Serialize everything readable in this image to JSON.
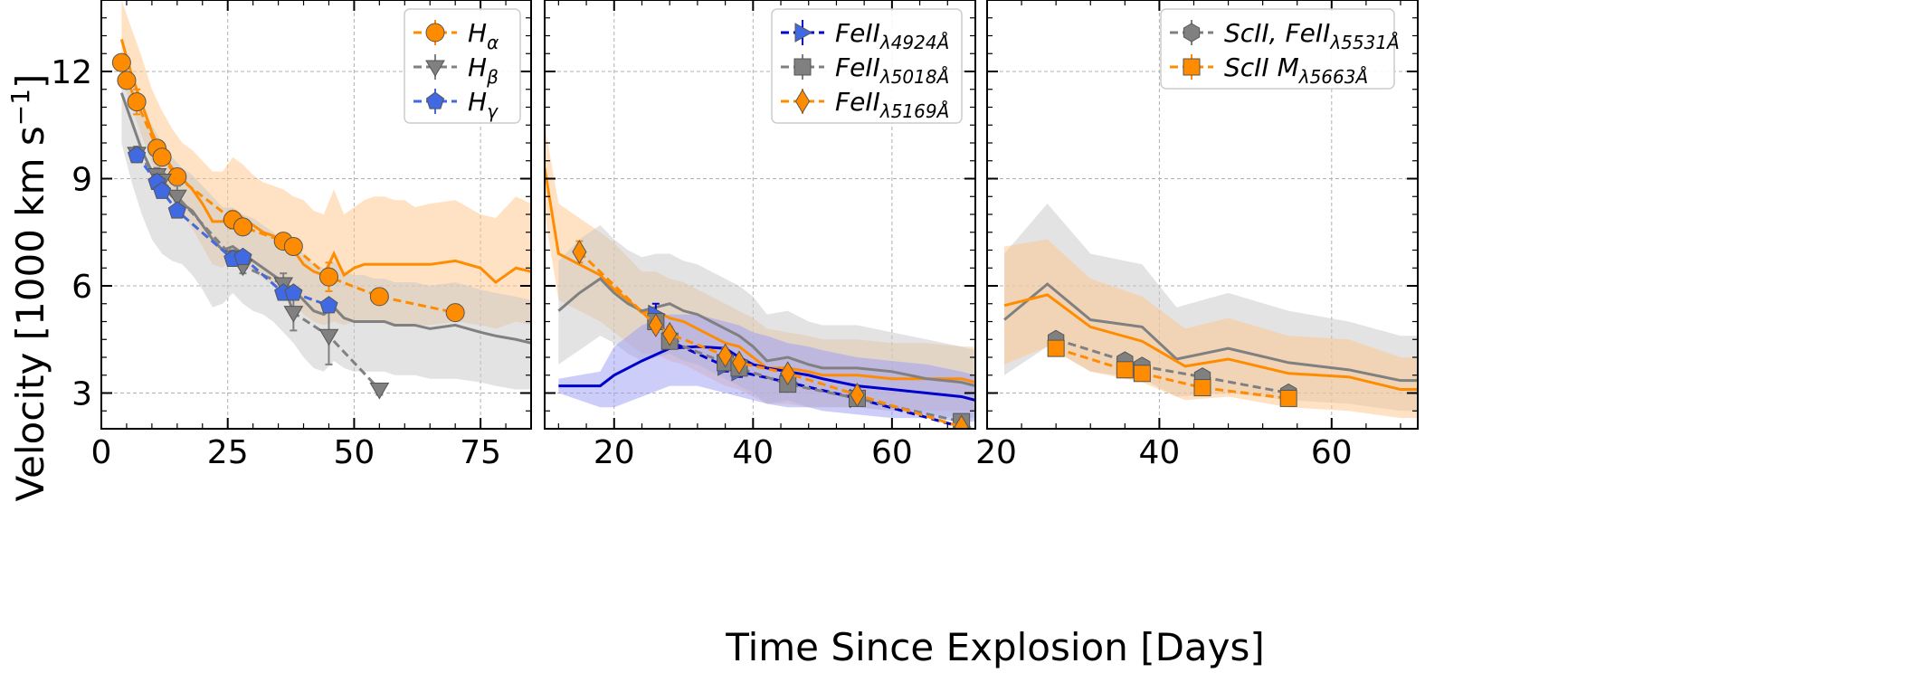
{
  "figure": {
    "ylabel": "Velocity [1000 km s",
    "ylabel_sup": "−1",
    "ylabel_close": "]",
    "xlabel": "Time Since Explosion [Days]",
    "colors": {
      "orange": "#ff8c00",
      "orange_fill": "#ffc58a",
      "gray": "#808080",
      "gray_fill": "#c8c8c8",
      "blue": "#0000cc",
      "blue_marker": "#4169e1",
      "blue_fill": "#9b9bf5",
      "grid": "#b0b0b0"
    }
  },
  "chart_data": [
    {
      "type": "line",
      "title": "",
      "xlim": [
        0,
        85
      ],
      "ylim": [
        2,
        14
      ],
      "xticks": [
        0,
        25,
        50,
        75
      ],
      "yticks": [
        3,
        6,
        9,
        12
      ],
      "grid": true,
      "legend_position": "top-right",
      "series": [
        {
          "name": "H",
          "sub": "α",
          "kind": "points",
          "marker": "circle",
          "color": "#ff8c00",
          "x": [
            4,
            5,
            7,
            11,
            12,
            15,
            26,
            28,
            36,
            38,
            45,
            55,
            70
          ],
          "y": [
            12.25,
            11.75,
            11.15,
            9.85,
            9.6,
            9.05,
            7.85,
            7.65,
            7.25,
            7.1,
            6.25,
            5.7,
            5.25
          ],
          "yerr": [
            0.2,
            0.2,
            0.35,
            0.2,
            0.2,
            0.2,
            0.25,
            0.2,
            0.2,
            0.2,
            0.4,
            0.15,
            0.15
          ]
        },
        {
          "name": "H",
          "sub": "β",
          "kind": "points",
          "marker": "tri_down",
          "color": "#808080",
          "x": [
            7,
            11,
            12,
            15,
            26,
            28,
            36,
            38,
            45,
            55
          ],
          "y": [
            9.7,
            9.1,
            8.95,
            8.5,
            6.8,
            6.55,
            6.05,
            5.25,
            4.6,
            3.1
          ],
          "yerr": [
            0.2,
            0.2,
            0.2,
            0.3,
            0.2,
            0.2,
            0.3,
            0.5,
            0.8,
            0.15
          ]
        },
        {
          "name": "H",
          "sub": "γ",
          "kind": "points",
          "marker": "pentagon",
          "color": "#4169e1",
          "x": [
            7,
            11,
            12,
            15,
            26,
            28,
            36,
            38,
            45
          ],
          "y": [
            9.65,
            8.9,
            8.65,
            8.1,
            6.75,
            6.8,
            5.8,
            5.8,
            5.45
          ],
          "yerr": [
            0.15,
            0.15,
            0.15,
            0.15,
            0.15,
            0.15,
            0.15,
            0.15,
            0.15
          ]
        },
        {
          "kind": "model",
          "color": "#ff8c00",
          "x": [
            4,
            6,
            8,
            10,
            12,
            14,
            16,
            18,
            20,
            22,
            24,
            26,
            28,
            30,
            32,
            34,
            36,
            38,
            40,
            42,
            44,
            46,
            48,
            50,
            52,
            54,
            56,
            58,
            60,
            62,
            65,
            70,
            75,
            78,
            82,
            85
          ],
          "y": [
            12.9,
            11.9,
            11.1,
            10.3,
            9.7,
            9.3,
            9.0,
            8.7,
            8.3,
            7.8,
            7.8,
            8.1,
            7.9,
            7.7,
            7.5,
            7.4,
            7.2,
            7.0,
            6.6,
            6.4,
            6.3,
            6.9,
            6.3,
            6.5,
            6.6,
            6.6,
            6.6,
            6.6,
            6.6,
            6.6,
            6.6,
            6.7,
            6.5,
            6.1,
            6.5,
            6.4
          ],
          "band_low": [
            11.8,
            11.0,
            10.2,
            9.4,
            8.9,
            8.4,
            8.0,
            7.6,
            7.1,
            6.6,
            6.5,
            6.8,
            6.6,
            6.4,
            6.2,
            6.0,
            5.8,
            5.5,
            5.2,
            5.0,
            4.9,
            5.0,
            4.9,
            5.0,
            5.0,
            5.0,
            5.0,
            4.9,
            4.9,
            4.9,
            4.9,
            5.0,
            4.9,
            4.8,
            5.0,
            4.9
          ],
          "band_high": [
            14.0,
            13.2,
            12.4,
            11.5,
            10.9,
            10.4,
            10.0,
            9.8,
            9.5,
            9.2,
            9.2,
            9.6,
            9.4,
            9.1,
            8.9,
            8.8,
            8.7,
            8.5,
            8.4,
            8.1,
            8.0,
            8.7,
            8.0,
            8.2,
            8.4,
            8.5,
            8.5,
            8.4,
            8.4,
            8.2,
            8.3,
            8.4,
            8.0,
            7.9,
            8.5,
            8.3
          ]
        },
        {
          "kind": "model",
          "color": "#808080",
          "x": [
            4,
            6,
            8,
            10,
            12,
            14,
            16,
            18,
            20,
            22,
            24,
            26,
            28,
            30,
            32,
            34,
            36,
            38,
            40,
            42,
            44,
            46,
            48,
            50,
            52,
            54,
            56,
            58,
            60,
            62,
            65,
            70,
            75,
            78,
            82,
            85
          ],
          "y": [
            11.4,
            10.6,
            9.8,
            9.2,
            8.8,
            8.5,
            8.3,
            8.1,
            7.7,
            7.3,
            7.0,
            7.1,
            6.9,
            6.7,
            6.5,
            6.3,
            6.1,
            5.9,
            5.6,
            5.3,
            5.2,
            5.4,
            5.1,
            5.0,
            5.0,
            5.0,
            5.0,
            4.9,
            4.9,
            4.9,
            4.8,
            4.9,
            4.7,
            4.6,
            4.5,
            4.4
          ],
          "band_low": [
            10.0,
            8.9,
            8.0,
            7.3,
            6.9,
            6.7,
            6.6,
            6.3,
            5.9,
            5.4,
            5.5,
            5.8,
            5.5,
            5.3,
            5.2,
            5.0,
            4.7,
            4.4,
            4.0,
            3.7,
            3.6,
            3.9,
            3.7,
            3.6,
            3.6,
            3.6,
            3.6,
            3.5,
            3.5,
            3.5,
            3.4,
            3.4,
            3.3,
            3.2,
            3.1,
            3.1
          ],
          "band_high": [
            12.5,
            11.9,
            11.0,
            10.5,
            10.0,
            9.6,
            9.3,
            9.1,
            8.8,
            8.5,
            8.2,
            8.2,
            8.0,
            7.9,
            7.7,
            7.5,
            7.3,
            7.1,
            6.9,
            6.6,
            6.5,
            6.7,
            6.4,
            6.3,
            6.3,
            6.2,
            6.2,
            6.1,
            6.1,
            6.1,
            6.0,
            6.1,
            5.9,
            5.8,
            5.7,
            5.6
          ]
        }
      ]
    },
    {
      "type": "line",
      "title": "",
      "xlim": [
        10,
        72
      ],
      "ylim": [
        2,
        14
      ],
      "xticks": [
        20,
        40,
        60
      ],
      "yticks": [
        3,
        6,
        9,
        12
      ],
      "grid": true,
      "legend_position": "top-right",
      "series": [
        {
          "name": "FeII",
          "sub": "λ4924Å",
          "kind": "points",
          "marker": "tri_right",
          "color": "#0000cc",
          "x": [
            26,
            28,
            36,
            38,
            45,
            55,
            70
          ],
          "y": [
            5.2,
            4.45,
            3.75,
            3.6,
            3.3,
            2.85,
            2.05
          ],
          "yerr": [
            0.3,
            0.15,
            0.15,
            0.15,
            0.1,
            0.1,
            0.1
          ]
        },
        {
          "name": "FeII",
          "sub": "λ5018Å",
          "kind": "points",
          "marker": "square",
          "color": "#808080",
          "x": [
            26,
            28,
            36,
            38,
            45,
            55,
            70
          ],
          "y": [
            5.0,
            4.45,
            3.85,
            3.7,
            3.25,
            2.85,
            2.2
          ],
          "yerr": [
            0.2,
            0.15,
            0.15,
            0.15,
            0.1,
            0.1,
            0.1
          ]
        },
        {
          "name": "FeII",
          "sub": "λ5169Å",
          "kind": "points",
          "marker": "diamond",
          "color": "#ff8c00",
          "x": [
            15,
            26,
            28,
            36,
            38,
            45,
            55,
            70
          ],
          "y": [
            6.95,
            4.9,
            4.65,
            4.05,
            3.85,
            3.55,
            2.95,
            2.05
          ],
          "yerr": [
            0.3,
            0.2,
            0.2,
            0.2,
            0.15,
            0.15,
            0.15,
            0.15
          ]
        },
        {
          "kind": "model",
          "color": "#ff8c00",
          "x": [
            10,
            12,
            15,
            18,
            20,
            22,
            24,
            26,
            28,
            30,
            32,
            34,
            36,
            38,
            40,
            42,
            45,
            48,
            50,
            55,
            60,
            65,
            70,
            72
          ],
          "y": [
            9.3,
            6.9,
            6.6,
            6.3,
            5.9,
            5.6,
            5.25,
            5.3,
            5.1,
            5.0,
            4.8,
            4.6,
            4.4,
            4.3,
            4.0,
            3.7,
            3.7,
            3.6,
            3.5,
            3.5,
            3.4,
            3.4,
            3.4,
            3.3
          ],
          "band_low": [
            8.0,
            5.6,
            5.3,
            5.0,
            4.7,
            4.4,
            4.1,
            4.1,
            3.9,
            3.8,
            3.6,
            3.4,
            3.2,
            3.1,
            2.9,
            2.7,
            2.7,
            2.6,
            2.6,
            2.6,
            2.5,
            2.5,
            2.5,
            2.5
          ],
          "band_high": [
            10.5,
            8.3,
            7.9,
            7.5,
            7.2,
            6.8,
            6.4,
            6.4,
            6.2,
            6.1,
            5.9,
            5.7,
            5.5,
            5.3,
            5.1,
            4.8,
            4.7,
            4.6,
            4.5,
            4.5,
            4.4,
            4.4,
            4.3,
            4.3
          ]
        },
        {
          "kind": "model",
          "color": "#808080",
          "x": [
            12,
            15,
            18,
            20,
            22,
            24,
            26,
            28,
            30,
            32,
            34,
            36,
            38,
            40,
            42,
            45,
            48,
            50,
            55,
            60,
            65,
            70,
            72
          ],
          "y": [
            5.3,
            5.8,
            6.2,
            5.8,
            5.5,
            5.3,
            5.4,
            5.5,
            5.3,
            5.2,
            5.0,
            4.8,
            4.6,
            4.3,
            3.9,
            4.0,
            3.8,
            3.7,
            3.7,
            3.6,
            3.4,
            3.3,
            3.2
          ],
          "band_low": [
            3.8,
            4.2,
            4.6,
            4.4,
            4.1,
            3.9,
            4.0,
            4.1,
            3.9,
            3.8,
            3.6,
            3.4,
            3.2,
            3.0,
            2.7,
            2.8,
            2.6,
            2.6,
            2.6,
            2.5,
            2.4,
            2.3,
            2.3
          ],
          "band_high": [
            6.7,
            7.3,
            7.7,
            7.3,
            7.0,
            6.8,
            6.9,
            6.9,
            6.7,
            6.6,
            6.4,
            6.2,
            6.0,
            5.7,
            5.2,
            5.3,
            5.0,
            4.9,
            4.9,
            4.7,
            4.5,
            4.3,
            4.2
          ]
        },
        {
          "kind": "model",
          "color": "#0000cc",
          "x": [
            12,
            18,
            20,
            24,
            28,
            32,
            36,
            38,
            40,
            42,
            45,
            48,
            50,
            55,
            60,
            65,
            70,
            72
          ],
          "y": [
            3.2,
            3.2,
            3.5,
            3.9,
            4.25,
            4.3,
            4.25,
            4.0,
            3.8,
            3.7,
            3.6,
            3.5,
            3.4,
            3.2,
            3.1,
            3.0,
            2.9,
            2.8
          ],
          "band_low": [
            3.0,
            2.6,
            2.6,
            2.9,
            3.2,
            3.2,
            3.0,
            2.9,
            2.8,
            2.7,
            2.6,
            2.6,
            2.5,
            2.4,
            2.3,
            2.3,
            2.2,
            2.2
          ],
          "band_high": [
            3.4,
            3.6,
            4.3,
            4.9,
            5.2,
            5.2,
            5.0,
            4.9,
            4.7,
            4.6,
            4.4,
            4.3,
            4.2,
            4.0,
            3.9,
            3.8,
            3.6,
            3.5
          ]
        }
      ]
    },
    {
      "type": "line",
      "title": "",
      "xlim": [
        20,
        70
      ],
      "ylim": [
        2,
        14
      ],
      "xticks": [
        20,
        40,
        60
      ],
      "yticks": [
        3,
        6,
        9,
        12
      ],
      "grid": true,
      "legend_position": "top-right",
      "series": [
        {
          "name": "ScII, FeII",
          "sub": "λ5531Å",
          "kind": "points",
          "marker": "hexagon",
          "color": "#808080",
          "x": [
            28,
            36,
            38,
            45,
            55
          ],
          "y": [
            4.5,
            3.9,
            3.75,
            3.45,
            3.0
          ],
          "yerr": [
            0.15,
            0.15,
            0.15,
            0.15,
            0.15
          ]
        },
        {
          "name": "ScII M",
          "sub": "λ5663Å",
          "kind": "points",
          "marker": "square",
          "color": "#ff8c00",
          "x": [
            28,
            36,
            38,
            45,
            55
          ],
          "y": [
            4.25,
            3.65,
            3.55,
            3.15,
            2.85
          ],
          "yerr": [
            0.15,
            0.15,
            0.15,
            0.15,
            0.15
          ]
        },
        {
          "kind": "model",
          "color": "#808080",
          "x": [
            22,
            27,
            32,
            38,
            42,
            48,
            55,
            62,
            68,
            70
          ],
          "y": [
            5.05,
            6.05,
            5.05,
            4.85,
            3.95,
            4.25,
            3.85,
            3.65,
            3.35,
            3.35
          ],
          "band_low": [
            3.5,
            4.3,
            3.6,
            3.4,
            2.9,
            3.0,
            2.8,
            2.7,
            2.5,
            2.5
          ],
          "band_high": [
            6.9,
            8.3,
            6.9,
            6.6,
            5.4,
            5.8,
            5.3,
            5.0,
            4.6,
            4.6
          ]
        },
        {
          "kind": "model",
          "color": "#ff8c00",
          "x": [
            22,
            27,
            32,
            38,
            43,
            48,
            55,
            62,
            68,
            70
          ],
          "y": [
            5.45,
            5.75,
            4.85,
            4.45,
            3.75,
            3.95,
            3.55,
            3.45,
            3.1,
            3.1
          ],
          "band_low": [
            3.8,
            4.3,
            3.6,
            3.3,
            2.8,
            2.9,
            2.6,
            2.5,
            2.3,
            2.3
          ],
          "band_high": [
            7.1,
            7.3,
            6.2,
            5.7,
            4.8,
            5.1,
            4.6,
            4.5,
            4.0,
            4.0
          ]
        }
      ]
    }
  ]
}
